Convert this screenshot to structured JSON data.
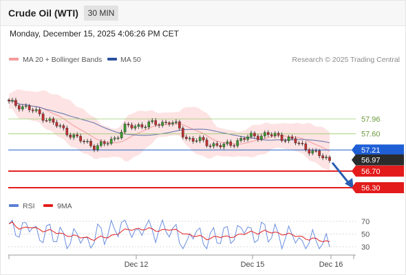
{
  "header": {
    "title": "Crude Oil (WTI)",
    "timeframe": "30 MIN"
  },
  "datetime": "Monday, December 15, 2025 4:06:26 PM CET",
  "legend": {
    "items": [
      {
        "label": "MA 20 + Bollinger Bands",
        "color": "#f49a9a"
      },
      {
        "label": "MA 50",
        "color": "#2b4f9e"
      }
    ],
    "credit": "Research © 2025 Trading Central"
  },
  "rsi_legend": {
    "items": [
      {
        "label": "RSI",
        "color": "#5b7fd6"
      },
      {
        "label": "9MA",
        "color": "#e31b1b"
      }
    ]
  },
  "chart_data": {
    "type": "candlestick",
    "ylim": [
      56.1,
      58.65
    ],
    "x_ticks": [
      "Dec 12",
      "Dec 15",
      "Dec 16"
    ],
    "levels": [
      {
        "value": 57.96,
        "label": "57.96",
        "style": "green-line"
      },
      {
        "value": 57.6,
        "label": "57.60",
        "style": "green-line"
      },
      {
        "value": 57.21,
        "label": "57.21",
        "style": "blue-line-box"
      },
      {
        "value": 56.97,
        "label": "56.97",
        "style": "current-price"
      },
      {
        "value": 56.7,
        "label": "56.70",
        "style": "red-line-box"
      },
      {
        "value": 56.3,
        "label": "56.30",
        "style": "red-line-box"
      }
    ],
    "rsi": {
      "ylim": [
        20,
        80
      ],
      "levels": [
        70,
        50,
        30
      ],
      "tick_labels": [
        "70",
        "50",
        "30"
      ]
    },
    "forecast_arrow": {
      "from": 56.97,
      "to": 56.3,
      "direction": "down"
    }
  }
}
